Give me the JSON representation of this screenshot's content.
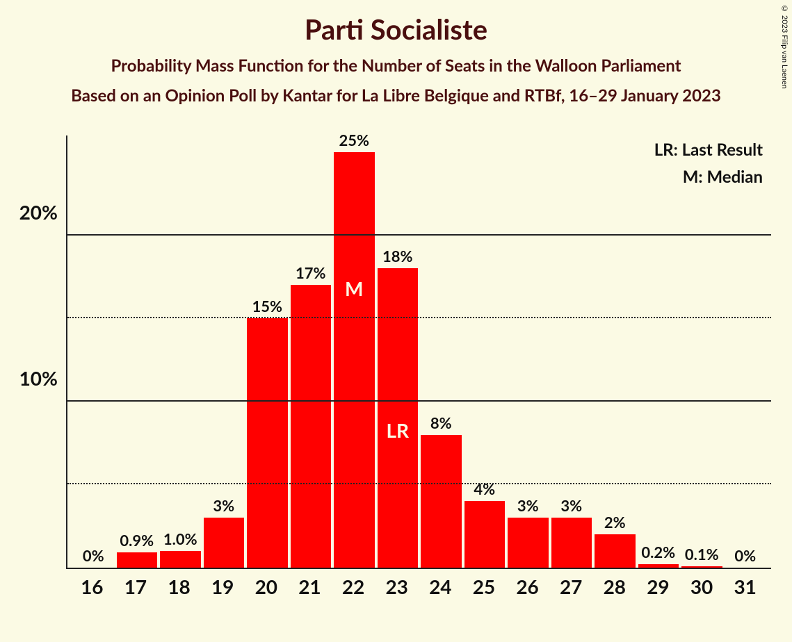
{
  "title": "Parti Socialiste",
  "subtitle1": "Probability Mass Function for the Number of Seats in the Walloon Parliament",
  "subtitle2": "Based on an Opinion Poll by Kantar for La Libre Belgique and RTBf, 16–29 January 2023",
  "copyright": "© 2023 Filip van Laenen",
  "legend": {
    "lr": "LR: Last Result",
    "m": "M: Median"
  },
  "chart": {
    "type": "bar",
    "background_color": "#fbfae4",
    "bar_color": "#ff0000",
    "text_color": "#111111",
    "title_color": "#4a0f0f",
    "ymax": 26,
    "y_major_ticks": [
      10,
      20
    ],
    "y_major_labels": [
      "10%",
      "20%"
    ],
    "y_minor_ticks": [
      5,
      15
    ],
    "categories": [
      "16",
      "17",
      "18",
      "19",
      "20",
      "21",
      "22",
      "23",
      "24",
      "25",
      "26",
      "27",
      "28",
      "29",
      "30",
      "31"
    ],
    "values": [
      0,
      0.9,
      1.0,
      3,
      15,
      17,
      25,
      18,
      8,
      4,
      3,
      3,
      2,
      0.2,
      0.1,
      0
    ],
    "value_labels": [
      "0%",
      "0.9%",
      "1.0%",
      "3%",
      "15%",
      "17%",
      "25%",
      "18%",
      "8%",
      "4%",
      "3%",
      "3%",
      "2%",
      "0.2%",
      "0.1%",
      "0%"
    ],
    "median_index": 6,
    "median_label": "M",
    "last_result_index": 7,
    "last_result_label": "LR",
    "title_fontsize": 40,
    "subtitle_fontsize": 24,
    "tick_fontsize": 28,
    "barlabel_fontsize": 22,
    "legend_fontsize": 24
  }
}
